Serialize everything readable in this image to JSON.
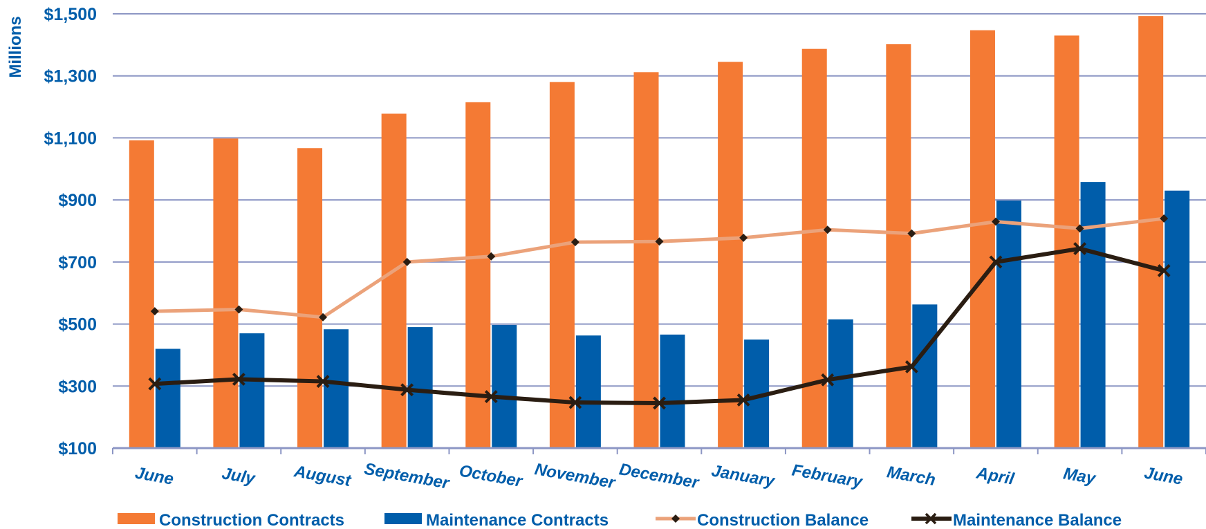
{
  "chart_data": {
    "type": "bar",
    "ylabel": "Millions",
    "ylim": [
      100,
      1500
    ],
    "y_ticks": [
      "$100",
      "$300",
      "$500",
      "$700",
      "$900",
      "$1,100",
      "$1,300",
      "$1,500"
    ],
    "y_tick_values": [
      100,
      300,
      500,
      700,
      900,
      1100,
      1300,
      1500
    ],
    "grid": "horizontal",
    "legend_position": "bottom",
    "categories": [
      "June",
      "July",
      "August",
      "September",
      "October",
      "November",
      "December",
      "January",
      "February",
      "March",
      "April",
      "May",
      "June"
    ],
    "series": [
      {
        "name": "Construction Contracts",
        "kind": "bar",
        "color": "#F47A34",
        "values": [
          1092,
          1098,
          1067,
          1178,
          1215,
          1280,
          1312,
          1345,
          1387,
          1402,
          1447,
          1430,
          1493
        ]
      },
      {
        "name": "Maintenance Contracts",
        "kind": "bar",
        "color": "#005DAA",
        "values": [
          420,
          470,
          483,
          490,
          497,
          463,
          466,
          450,
          515,
          563,
          898,
          958,
          930
        ]
      },
      {
        "name": "Construction Balance",
        "kind": "line",
        "color": "#EBA27A",
        "marker": "diamond",
        "values": [
          541,
          547,
          522,
          700,
          718,
          764,
          766,
          778,
          804,
          792,
          830,
          808,
          840
        ]
      },
      {
        "name": "Maintenance Balance",
        "kind": "line",
        "color": "#2A1D12",
        "marker": "x",
        "values": [
          307,
          322,
          315,
          288,
          266,
          247,
          245,
          255,
          320,
          362,
          700,
          743,
          672
        ]
      }
    ]
  }
}
